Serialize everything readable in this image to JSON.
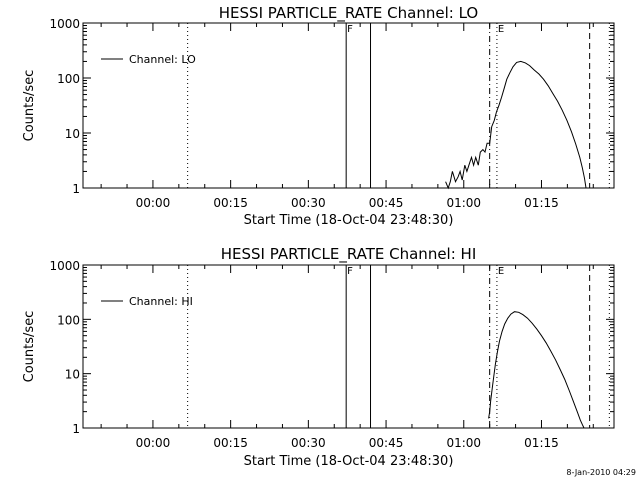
{
  "chart_data": [
    {
      "type": "line",
      "title": "HESSI PARTICLE_RATE Channel: LO",
      "xlabel": "Start Time (18-Oct-04 23:48:30)",
      "ylabel": "Counts/sec",
      "yscale": "log",
      "ylim": [
        1,
        1000
      ],
      "xlim_minutes": [
        -13.5,
        89
      ],
      "x_ticks": [
        {
          "value": 0,
          "label": "00:00"
        },
        {
          "value": 15,
          "label": "00:15"
        },
        {
          "value": 30,
          "label": "00:30"
        },
        {
          "value": 45,
          "label": "00:45"
        },
        {
          "value": 60,
          "label": "01:00"
        },
        {
          "value": 75,
          "label": "01:15"
        }
      ],
      "y_ticks": [
        {
          "value": 1,
          "label": "1"
        },
        {
          "value": 10,
          "label": "10"
        },
        {
          "value": 100,
          "label": "100"
        },
        {
          "value": 1000,
          "label": "1000"
        }
      ],
      "legend": {
        "placement": "top-left",
        "entries": [
          "Channel: LO"
        ]
      },
      "markers": [
        {
          "x": 6.7,
          "style": "dotted",
          "label": ""
        },
        {
          "x": 37.3,
          "style": "solid",
          "label": "F"
        },
        {
          "x": 42.0,
          "style": "solid",
          "label": ""
        },
        {
          "x": 65.0,
          "style": "dashdot",
          "label": ""
        },
        {
          "x": 66.4,
          "style": "dotted",
          "label": "E"
        },
        {
          "x": 84.3,
          "style": "dashed",
          "label": ""
        },
        {
          "x": 88.1,
          "style": "dotted",
          "label": ""
        }
      ],
      "series": [
        {
          "name": "Channel: LO",
          "x": [
            56.5,
            57.0,
            57.4,
            57.8,
            58.4,
            58.9,
            59.3,
            59.7,
            60.2,
            60.6,
            61.0,
            61.5,
            61.9,
            62.3,
            62.8,
            63.2,
            63.7,
            64.1,
            64.5,
            65.0,
            65.4,
            65.9,
            66.3,
            66.8,
            67.3,
            67.8,
            68.3,
            68.9,
            69.5,
            70.2,
            71.0,
            71.9,
            72.7,
            73.6,
            74.5,
            75.4,
            76.3,
            77.2,
            78.1,
            79.0,
            79.9,
            80.8,
            81.6,
            82.4,
            82.9,
            83.3,
            83.6
          ],
          "y": [
            1.3,
            1,
            1.3,
            2,
            1.3,
            1.6,
            2,
            1.4,
            2.6,
            2,
            2.6,
            3.6,
            2.6,
            3.6,
            2.6,
            4.5,
            5,
            4.5,
            6.5,
            6.5,
            13,
            17,
            24,
            32,
            45,
            65,
            95,
            125,
            160,
            192,
            200,
            188,
            168,
            140,
            118,
            95,
            72,
            52,
            38,
            26,
            17,
            10.5,
            6.3,
            3.6,
            2.3,
            1.5,
            1
          ]
        }
      ]
    },
    {
      "type": "line",
      "title": "HESSI PARTICLE_RATE Channel: HI",
      "xlabel": "Start Time (18-Oct-04 23:48:30)",
      "ylabel": "Counts/sec",
      "yscale": "log",
      "ylim": [
        1,
        1000
      ],
      "xlim_minutes": [
        -13.5,
        89
      ],
      "x_ticks": [
        {
          "value": 0,
          "label": "00:00"
        },
        {
          "value": 15,
          "label": "00:15"
        },
        {
          "value": 30,
          "label": "00:30"
        },
        {
          "value": 45,
          "label": "00:45"
        },
        {
          "value": 60,
          "label": "01:00"
        },
        {
          "value": 75,
          "label": "01:15"
        }
      ],
      "y_ticks": [
        {
          "value": 1,
          "label": "1"
        },
        {
          "value": 10,
          "label": "10"
        },
        {
          "value": 100,
          "label": "100"
        },
        {
          "value": 1000,
          "label": "1000"
        }
      ],
      "legend": {
        "placement": "top-left",
        "entries": [
          "Channel: HI"
        ]
      },
      "markers": [
        {
          "x": 6.7,
          "style": "dotted",
          "label": ""
        },
        {
          "x": 37.3,
          "style": "solid",
          "label": "F"
        },
        {
          "x": 42.0,
          "style": "solid",
          "label": ""
        },
        {
          "x": 65.0,
          "style": "dashdot",
          "label": ""
        },
        {
          "x": 66.4,
          "style": "dotted",
          "label": "E"
        },
        {
          "x": 84.3,
          "style": "dashed",
          "label": ""
        },
        {
          "x": 88.1,
          "style": "dotted",
          "label": ""
        }
      ],
      "series": [
        {
          "name": "Channel: HI",
          "x": [
            64.8,
            65.0,
            65.2,
            65.5,
            65.8,
            66.1,
            66.5,
            66.9,
            67.4,
            67.9,
            68.5,
            69.1,
            69.8,
            70.6,
            71.4,
            72.3,
            73.2,
            74.1,
            75.0,
            75.9,
            76.8,
            77.7,
            78.6,
            79.5,
            80.4,
            81.2,
            82.0,
            82.5,
            82.9,
            83.2
          ],
          "y": [
            1.5,
            2.0,
            3.2,
            5.5,
            9,
            15,
            25,
            40,
            60,
            82,
            105,
            125,
            138,
            135,
            122,
            105,
            85,
            66,
            50,
            37,
            26,
            18,
            12,
            7.8,
            4.8,
            3.0,
            1.9,
            1.4,
            1.15,
            1
          ]
        }
      ]
    }
  ],
  "footer": {
    "timestamp": "8-Jan-2010 04:29"
  }
}
